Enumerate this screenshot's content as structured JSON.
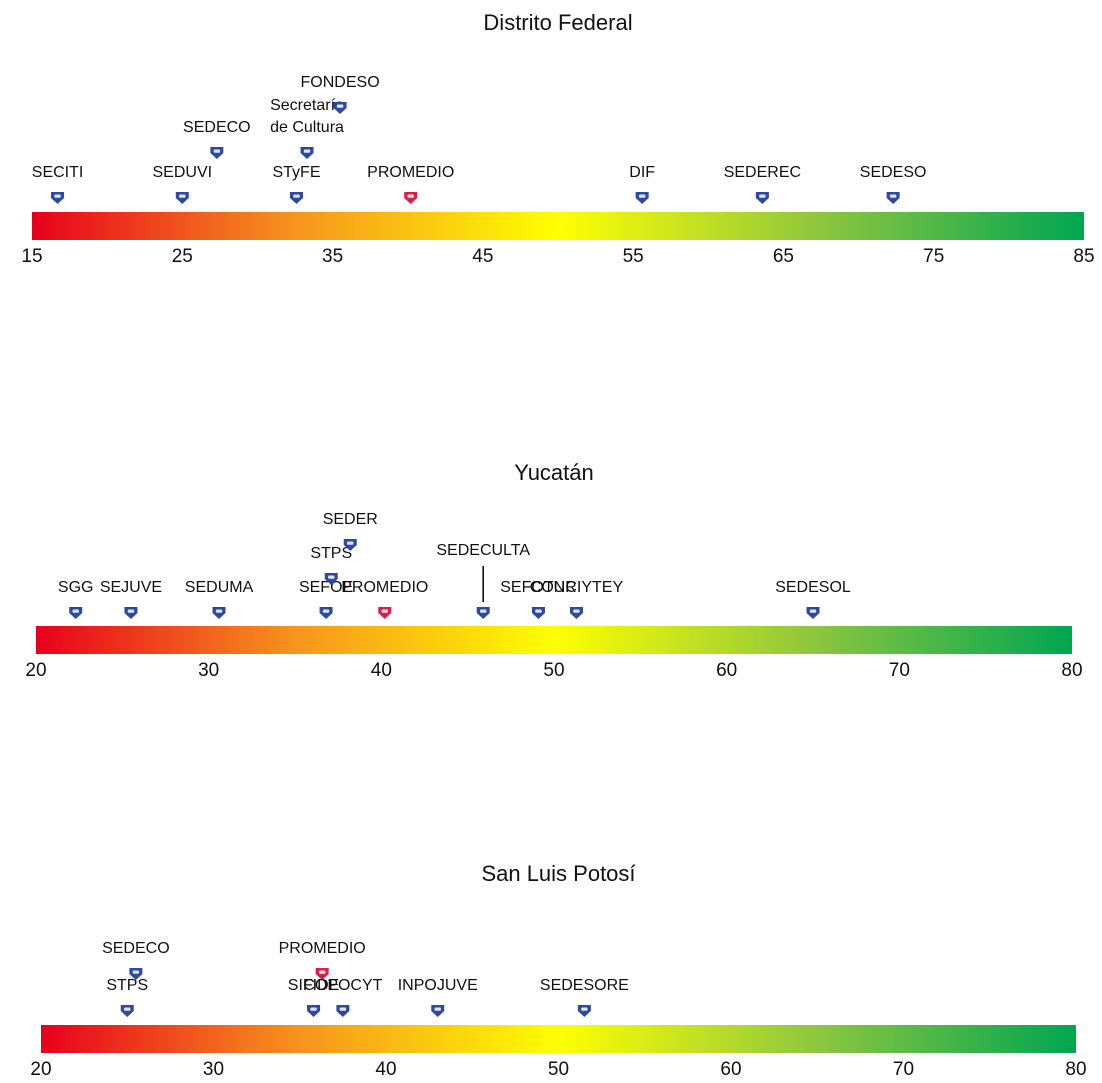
{
  "chart_data": [
    {
      "type": "scatter",
      "title": "Distrito Federal",
      "xlim": [
        15,
        85
      ],
      "ticks": [
        "15",
        "25",
        "35",
        "45",
        "55",
        "65",
        "75",
        "85"
      ],
      "gradient": [
        "#e8001c",
        "#f7941d",
        "#ffff00",
        "#8dc63f",
        "#00a651"
      ],
      "marker_colors": {
        "agency": "#2e4a9e",
        "average": "#d6204a"
      },
      "points": [
        {
          "label": "SECITI",
          "x": 16.7,
          "row": 0
        },
        {
          "label": "SEDUVI",
          "x": 25.0,
          "row": 0
        },
        {
          "label": "SEDECO",
          "x": 27.3,
          "row": 1
        },
        {
          "label": "STyFE",
          "x": 32.6,
          "row": 0
        },
        {
          "label": "Secretaría de Cultura",
          "x": 33.3,
          "row": 1
        },
        {
          "label": "FONDESO",
          "x": 35.5,
          "row": 2
        },
        {
          "label": "PROMEDIO",
          "x": 40.2,
          "row": 0,
          "kind": "average"
        },
        {
          "label": "DIF",
          "x": 55.6,
          "row": 0
        },
        {
          "label": "SEDEREC",
          "x": 63.6,
          "row": 0
        },
        {
          "label": "SEDESO",
          "x": 72.3,
          "row": 0
        }
      ]
    },
    {
      "type": "scatter",
      "title": "Yucatán",
      "xlim": [
        20,
        80
      ],
      "ticks": [
        "20",
        "30",
        "40",
        "50",
        "60",
        "70",
        "80"
      ],
      "gradient": [
        "#e8001c",
        "#f7941d",
        "#ffff00",
        "#8dc63f",
        "#00a651"
      ],
      "marker_colors": {
        "agency": "#2e4a9e",
        "average": "#d6204a"
      },
      "points": [
        {
          "label": "SGG",
          "x": 22.3,
          "row": 0
        },
        {
          "label": "SEJUVE",
          "x": 25.5,
          "row": 0
        },
        {
          "label": "SEDUMA",
          "x": 30.6,
          "row": 0
        },
        {
          "label": "SEFOE",
          "x": 36.8,
          "row": 0
        },
        {
          "label": "STPS",
          "x": 37.1,
          "row": 1
        },
        {
          "label": "SEDER",
          "x": 38.2,
          "row": 2
        },
        {
          "label": "PROMEDIO",
          "x": 40.2,
          "row": 0,
          "kind": "average"
        },
        {
          "label": "SEDECULTA",
          "x": 45.9,
          "row": 0,
          "leader": true
        },
        {
          "label": "SEFOTUR",
          "x": 49.1,
          "row": 0
        },
        {
          "label": "CONCIYTEY",
          "x": 51.3,
          "row": 0
        },
        {
          "label": "SEDESOL",
          "x": 65.0,
          "row": 0
        }
      ]
    },
    {
      "type": "scatter",
      "title": "San Luis Potosí",
      "xlim": [
        20,
        80
      ],
      "ticks": [
        "20",
        "30",
        "40",
        "50",
        "60",
        "70",
        "80"
      ],
      "gradient": [
        "#e8001c",
        "#f7941d",
        "#ffff00",
        "#8dc63f",
        "#00a651"
      ],
      "marker_colors": {
        "agency": "#2e4a9e",
        "average": "#d6204a"
      },
      "points": [
        {
          "label": "STPS",
          "x": 25.0,
          "row": 0
        },
        {
          "label": "SEDECO",
          "x": 25.5,
          "row": 1
        },
        {
          "label": "SIFIDE",
          "x": 35.8,
          "row": 0
        },
        {
          "label": "PROMEDIO",
          "x": 36.3,
          "row": 1,
          "kind": "average"
        },
        {
          "label": "COPOCYT",
          "x": 37.5,
          "row": 0
        },
        {
          "label": "INPOJUVE",
          "x": 43.0,
          "row": 0
        },
        {
          "label": "SEDESORE",
          "x": 51.5,
          "row": 0
        }
      ]
    }
  ]
}
